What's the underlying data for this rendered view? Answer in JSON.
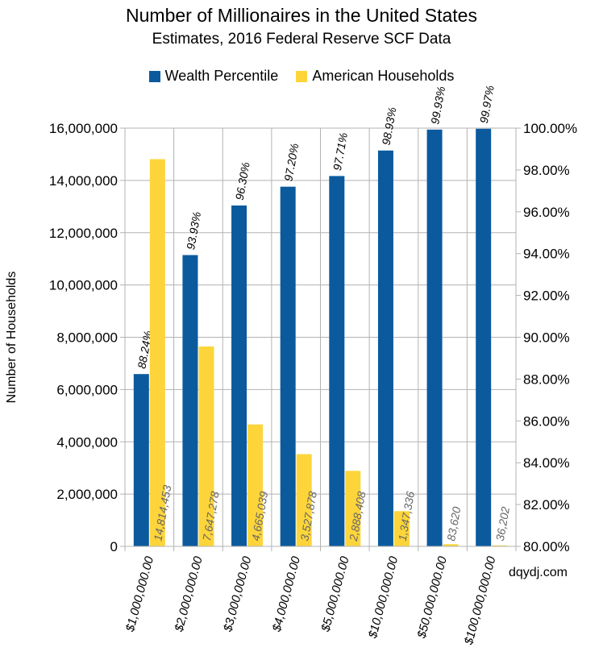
{
  "chart_data": {
    "type": "bar",
    "title": "Number of Millionaires in the United States",
    "subtitle": "Estimates, 2016 Federal Reserve SCF Data",
    "ylabel": "Number of Households",
    "y2label": "",
    "ylim": [
      0,
      16000000
    ],
    "y2lim": [
      80,
      100
    ],
    "y_ticks": [
      "0",
      "2,000,000",
      "4,000,000",
      "6,000,000",
      "8,000,000",
      "10,000,000",
      "12,000,000",
      "14,000,000",
      "16,000,000"
    ],
    "y2_ticks": [
      "80.00%",
      "82.00%",
      "84.00%",
      "86.00%",
      "88.00%",
      "90.00%",
      "92.00%",
      "94.00%",
      "96.00%",
      "98.00%",
      "100.00%"
    ],
    "categories": [
      "$1,000,000.00",
      "$2,000,000.00",
      "$3,000,000.00",
      "$4,000,000.00",
      "$5,000,000.00",
      "$10,000,000.00",
      "$50,000,000.00",
      "$100,000,000.00"
    ],
    "series": [
      {
        "name": "Wealth Percentile",
        "axis": "right",
        "color": "#0b5a9e",
        "values": [
          88.24,
          93.93,
          96.3,
          97.2,
          97.71,
          98.93,
          99.93,
          99.97
        ],
        "labels": [
          "88.24%",
          "93.93%",
          "96.30%",
          "97.20%",
          "97.71%",
          "98.93%",
          "99.93%",
          "99.97%"
        ]
      },
      {
        "name": "American Households",
        "axis": "left",
        "color": "#fdd53b",
        "values": [
          14814453,
          7647278,
          4665039,
          3527878,
          2888408,
          1347336,
          83620,
          36202
        ],
        "labels": [
          "14,814,453",
          "7,647,278",
          "4,665,039",
          "3,527,878",
          "2,888,408",
          "1,347,336",
          "83,620",
          "36,202"
        ]
      }
    ],
    "grid": true,
    "legend_position": "top",
    "source_note": "dqydj.com"
  }
}
